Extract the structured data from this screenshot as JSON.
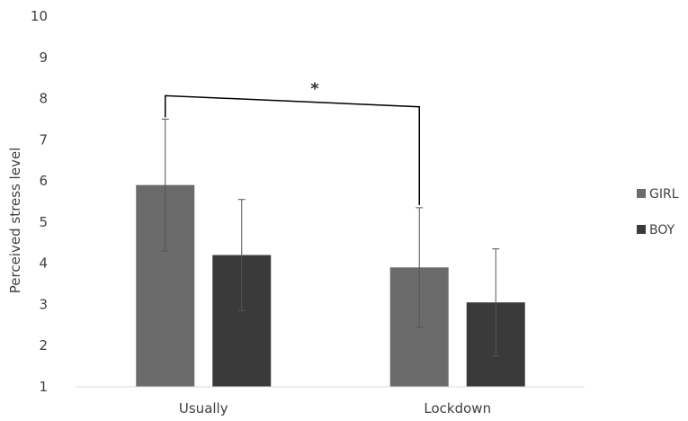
{
  "chart_data": {
    "type": "bar",
    "title": "",
    "xlabel": "",
    "ylabel": "Perceived stress level",
    "ylim": [
      1,
      10
    ],
    "yticks": [
      "1",
      "2",
      "3",
      "4",
      "5",
      "6",
      "7",
      "8",
      "9",
      "10"
    ],
    "categories": [
      "Usually",
      "Lockdown"
    ],
    "series": [
      {
        "name": "GIRL",
        "values": [
          5.9,
          3.9
        ],
        "error": [
          1.6,
          1.45
        ],
        "color": "#6b6b6b"
      },
      {
        "name": "BOY",
        "values": [
          4.2,
          3.05
        ],
        "error": [
          1.35,
          1.3
        ],
        "color": "#3a3a3a"
      }
    ],
    "grid": false,
    "legend": "right",
    "annotations": [
      {
        "text": "*",
        "from_category": "Usually",
        "from_series": "GIRL",
        "to_category": "Lockdown",
        "to_series": "GIRL"
      }
    ]
  }
}
